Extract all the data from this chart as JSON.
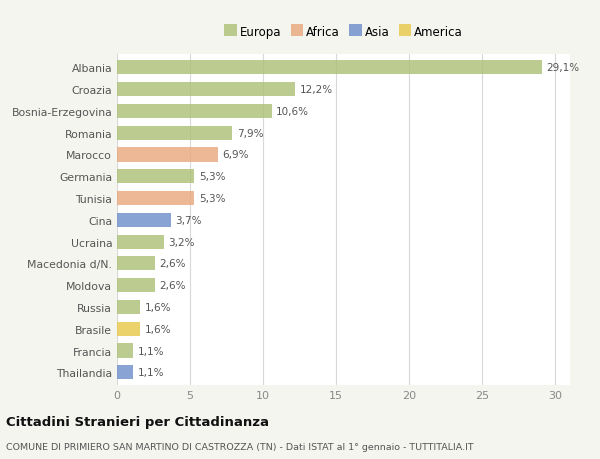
{
  "countries": [
    "Albania",
    "Croazia",
    "Bosnia-Erzegovina",
    "Romania",
    "Marocco",
    "Germania",
    "Tunisia",
    "Cina",
    "Ucraina",
    "Macedonia d/N.",
    "Moldova",
    "Russia",
    "Brasile",
    "Francia",
    "Thailandia"
  ],
  "values": [
    29.1,
    12.2,
    10.6,
    7.9,
    6.9,
    5.3,
    5.3,
    3.7,
    3.2,
    2.6,
    2.6,
    1.6,
    1.6,
    1.1,
    1.1
  ],
  "labels": [
    "29,1%",
    "12,2%",
    "10,6%",
    "7,9%",
    "6,9%",
    "5,3%",
    "5,3%",
    "3,7%",
    "3,2%",
    "2,6%",
    "2,6%",
    "1,6%",
    "1,6%",
    "1,1%",
    "1,1%"
  ],
  "continents": [
    "Europa",
    "Europa",
    "Europa",
    "Europa",
    "Africa",
    "Europa",
    "Africa",
    "Asia",
    "Europa",
    "Europa",
    "Europa",
    "Europa",
    "America",
    "Europa",
    "Asia"
  ],
  "colors": {
    "Europa": "#adc178",
    "Africa": "#e8a97e",
    "Asia": "#6e8fcb",
    "America": "#e8c84a"
  },
  "legend_order": [
    "Europa",
    "Africa",
    "Asia",
    "America"
  ],
  "title": "Cittadini Stranieri per Cittadinanza",
  "subtitle": "COMUNE DI PRIMIERO SAN MARTINO DI CASTROZZA (TN) - Dati ISTAT al 1° gennaio - TUTTITALIA.IT",
  "xlim": [
    0,
    31
  ],
  "xticks": [
    0,
    5,
    10,
    15,
    20,
    25,
    30
  ],
  "background_color": "#f5f5f0",
  "plot_background": "#ffffff",
  "grid_color": "#d8d8d8"
}
